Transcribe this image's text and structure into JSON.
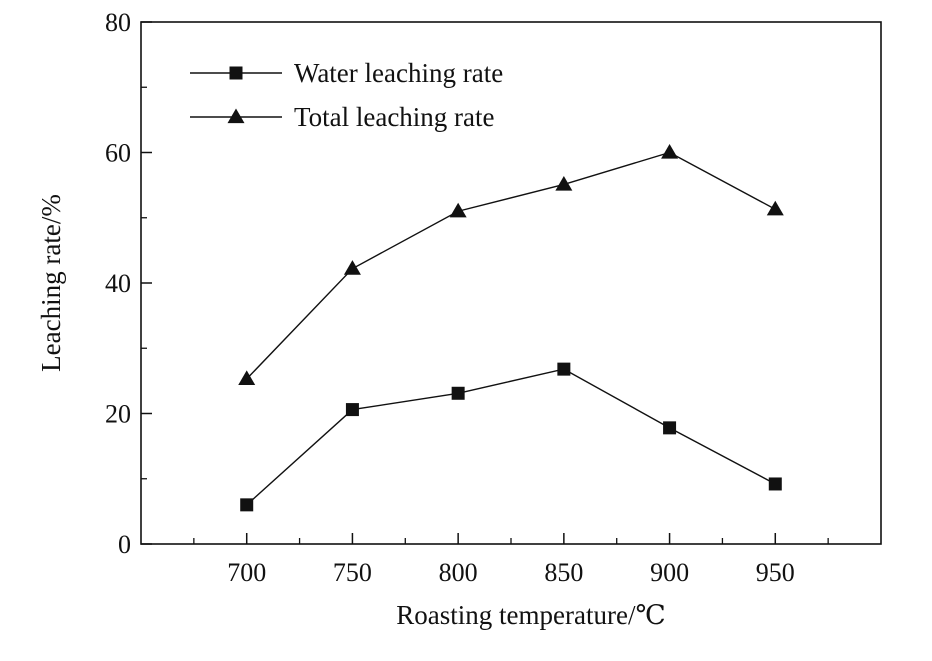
{
  "chart_data": {
    "type": "line",
    "xlabel": "Roasting temperature/℃",
    "ylabel": "Leaching rate/%",
    "xlim": [
      650,
      1000
    ],
    "ylim": [
      0,
      80
    ],
    "x_ticks": [
      700,
      750,
      800,
      850,
      900,
      950
    ],
    "x_minor_ticks": [
      675,
      725,
      775,
      825,
      875,
      925,
      975
    ],
    "y_ticks": [
      0,
      20,
      40,
      60,
      80
    ],
    "y_minor_ticks": [
      10,
      30,
      50,
      70
    ],
    "grid": false,
    "legend_position": "top-left",
    "x": [
      700,
      750,
      800,
      850,
      900,
      950
    ],
    "series": [
      {
        "name": "Water leaching rate",
        "marker": "square",
        "color": "#111111",
        "values": [
          6.0,
          20.6,
          23.1,
          26.8,
          17.8,
          9.2
        ]
      },
      {
        "name": "Total leaching rate",
        "marker": "triangle",
        "color": "#111111",
        "values": [
          25.3,
          42.2,
          51.0,
          55.1,
          60.0,
          51.3
        ]
      }
    ]
  }
}
